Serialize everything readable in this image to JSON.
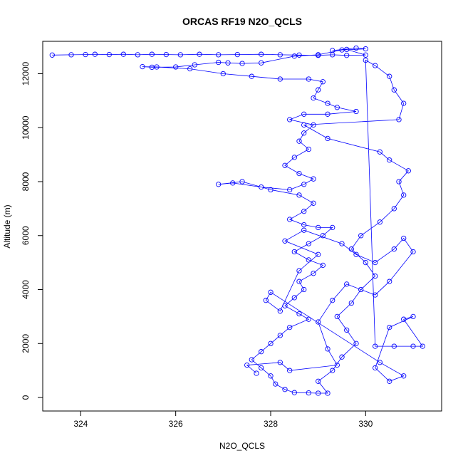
{
  "chart_data": {
    "type": "scatter",
    "title": "ORCAS RF19 N2O_QCLS",
    "xlabel": "N2O_QCLS",
    "ylabel": "Altitude (m)",
    "xlim": [
      323.2,
      331.6
    ],
    "ylim": [
      -500,
      13200
    ],
    "x_ticks": [
      324,
      326,
      328,
      330
    ],
    "y_ticks": [
      0,
      2000,
      4000,
      6000,
      8000,
      10000,
      12000
    ],
    "grid": false,
    "legend": "none",
    "series": [
      {
        "color": "#0000ff",
        "marker": "open-circle",
        "connected": true,
        "points": [
          [
            323.4,
            12690
          ],
          [
            323.8,
            12700
          ],
          [
            324.1,
            12710
          ],
          [
            324.3,
            12720
          ],
          [
            324.6,
            12710
          ],
          [
            324.9,
            12720
          ],
          [
            325.2,
            12700
          ],
          [
            325.5,
            12720
          ],
          [
            325.8,
            12710
          ],
          [
            326.1,
            12700
          ],
          [
            326.5,
            12720
          ],
          [
            326.9,
            12700
          ],
          [
            327.3,
            12710
          ],
          [
            327.8,
            12720
          ],
          [
            328.2,
            12700
          ],
          [
            328.6,
            12690
          ],
          [
            329.0,
            12680
          ],
          [
            329.3,
            12700
          ],
          [
            329.6,
            12680
          ],
          [
            330.0,
            12690
          ],
          [
            329.6,
            12900
          ],
          [
            329.3,
            12860
          ],
          [
            329.8,
            12950
          ],
          [
            330.0,
            12920
          ],
          [
            329.5,
            12880
          ],
          [
            329.0,
            12700
          ],
          [
            328.5,
            12650
          ],
          [
            327.8,
            12400
          ],
          [
            327.4,
            12380
          ],
          [
            327.1,
            12400
          ],
          [
            326.9,
            12420
          ],
          [
            326.4,
            12330
          ],
          [
            326.0,
            12250
          ],
          [
            325.5,
            12240
          ],
          [
            325.3,
            12260
          ],
          [
            325.6,
            12250
          ],
          [
            326.3,
            12180
          ],
          [
            327.0,
            12000
          ],
          [
            327.6,
            11900
          ],
          [
            328.2,
            11800
          ],
          [
            328.8,
            11800
          ],
          [
            329.1,
            11700
          ],
          [
            329.0,
            11400
          ],
          [
            328.9,
            11100
          ],
          [
            329.2,
            10900
          ],
          [
            329.4,
            10750
          ],
          [
            329.8,
            10600
          ],
          [
            329.2,
            10500
          ],
          [
            328.7,
            10500
          ],
          [
            328.4,
            10300
          ],
          [
            328.9,
            10100
          ],
          [
            328.7,
            9800
          ],
          [
            328.6,
            9500
          ],
          [
            328.8,
            9200
          ],
          [
            328.5,
            8900
          ],
          [
            328.3,
            8600
          ],
          [
            328.6,
            8300
          ],
          [
            328.9,
            8100
          ],
          [
            328.7,
            7900
          ],
          [
            328.4,
            7700
          ],
          [
            327.8,
            7800
          ],
          [
            327.2,
            7950
          ],
          [
            326.9,
            7900
          ],
          [
            327.4,
            8000
          ],
          [
            328.0,
            7700
          ],
          [
            328.6,
            7500
          ],
          [
            328.9,
            7200
          ],
          [
            328.7,
            6900
          ],
          [
            328.4,
            6600
          ],
          [
            328.7,
            6400
          ],
          [
            329.0,
            6300
          ],
          [
            329.3,
            6300
          ],
          [
            329.1,
            6000
          ],
          [
            328.8,
            5700
          ],
          [
            328.5,
            5400
          ],
          [
            328.8,
            5100
          ],
          [
            329.1,
            4900
          ],
          [
            328.9,
            4600
          ],
          [
            328.6,
            4300
          ],
          [
            328.7,
            4000
          ],
          [
            328.5,
            3700
          ],
          [
            328.3,
            3400
          ],
          [
            328.6,
            3100
          ],
          [
            328.8,
            2900
          ],
          [
            328.4,
            2600
          ],
          [
            328.2,
            2300
          ],
          [
            328.0,
            2000
          ],
          [
            327.8,
            1700
          ],
          [
            327.6,
            1400
          ],
          [
            327.8,
            1100
          ],
          [
            328.0,
            800
          ],
          [
            328.1,
            500
          ],
          [
            328.3,
            300
          ],
          [
            328.5,
            180
          ],
          [
            328.8,
            170
          ],
          [
            329.0,
            160
          ],
          [
            329.2,
            160
          ],
          [
            329.0,
            600
          ],
          [
            329.3,
            1000
          ],
          [
            329.5,
            1500
          ],
          [
            329.8,
            2000
          ],
          [
            329.6,
            2500
          ],
          [
            329.4,
            3000
          ],
          [
            329.7,
            3500
          ],
          [
            329.9,
            4000
          ],
          [
            330.2,
            4500
          ],
          [
            330.0,
            5000
          ],
          [
            329.7,
            5500
          ],
          [
            329.9,
            6000
          ],
          [
            330.3,
            6500
          ],
          [
            330.6,
            7000
          ],
          [
            330.8,
            7500
          ],
          [
            330.7,
            8000
          ],
          [
            330.9,
            8400
          ],
          [
            330.5,
            8800
          ],
          [
            330.3,
            9100
          ],
          [
            329.2,
            9600
          ],
          [
            328.7,
            10100
          ],
          [
            330.7,
            10300
          ],
          [
            330.8,
            10900
          ],
          [
            330.6,
            11400
          ],
          [
            330.5,
            11900
          ],
          [
            330.2,
            12300
          ],
          [
            330.0,
            12500
          ],
          [
            330.2,
            1900
          ],
          [
            330.6,
            1900
          ],
          [
            331.0,
            1900
          ],
          [
            331.2,
            1900
          ],
          [
            330.8,
            2900
          ],
          [
            331.0,
            3000
          ],
          [
            330.5,
            2600
          ],
          [
            330.2,
            1100
          ],
          [
            330.5,
            600
          ],
          [
            330.8,
            800
          ],
          [
            330.3,
            1300
          ],
          [
            328.0,
            3900
          ],
          [
            327.9,
            3600
          ],
          [
            328.2,
            3200
          ],
          [
            328.6,
            4700
          ],
          [
            329.0,
            5300
          ],
          [
            328.3,
            5800
          ],
          [
            328.7,
            6200
          ],
          [
            329.5,
            5700
          ],
          [
            329.8,
            5300
          ],
          [
            330.2,
            5000
          ],
          [
            330.6,
            5500
          ],
          [
            330.8,
            5900
          ],
          [
            331.0,
            5400
          ],
          [
            330.5,
            4300
          ],
          [
            330.2,
            3800
          ],
          [
            329.6,
            4200
          ],
          [
            329.3,
            3600
          ],
          [
            329.0,
            2800
          ],
          [
            329.2,
            1800
          ],
          [
            329.4,
            1200
          ],
          [
            328.4,
            1000
          ],
          [
            328.2,
            1300
          ],
          [
            327.5,
            1200
          ],
          [
            327.7,
            900
          ]
        ]
      }
    ]
  }
}
